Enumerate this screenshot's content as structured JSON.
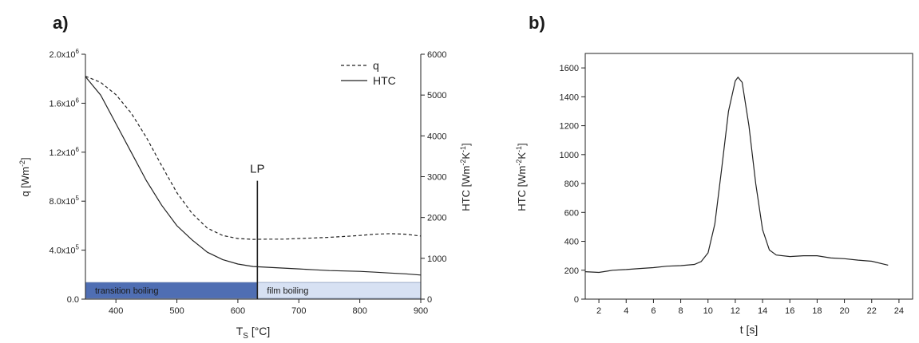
{
  "chart_data": [
    {
      "panel": "a)",
      "type": "line",
      "xlabel": "T",
      "xlabel_sub": "S",
      "xlabel_unit": "[°C]",
      "ylabel_left": "q [Wm",
      "ylabel_left_sup": "-2",
      "ylabel_left_end": "]",
      "ylabel_right": "HTC [Wm",
      "ylabel_right_sup": "-2",
      "ylabel_right_mid": "K",
      "ylabel_right_sup2": "-1",
      "ylabel_right_end": "]",
      "xlim": [
        350,
        900
      ],
      "ylim_left": [
        0,
        2000000
      ],
      "ylim_right": [
        0,
        6000
      ],
      "xticks": [
        "400",
        "500",
        "600",
        "700",
        "800",
        "900"
      ],
      "xtick_values": [
        400,
        500,
        600,
        700,
        800,
        900
      ],
      "yticks_left": [
        {
          "value": 0,
          "mant": "0.0",
          "exp": ""
        },
        {
          "value": 400000,
          "mant": "4.0x10",
          "exp": "5"
        },
        {
          "value": 800000,
          "mant": "8.0x10",
          "exp": "5"
        },
        {
          "value": 1200000,
          "mant": "1.2x10",
          "exp": "6"
        },
        {
          "value": 1600000,
          "mant": "1.6x10",
          "exp": "6"
        },
        {
          "value": 2000000,
          "mant": "2.0x10",
          "exp": "6"
        }
      ],
      "yticks_right": [
        "0",
        "1000",
        "2000",
        "3000",
        "4000",
        "5000",
        "6000"
      ],
      "ytick_right_values": [
        0,
        1000,
        2000,
        3000,
        4000,
        5000,
        6000
      ],
      "legend": {
        "q": "q",
        "htc": "HTC",
        "placement": "top-right"
      },
      "series": [
        {
          "name": "q",
          "axis": "left",
          "style": "dashed",
          "x": [
            350,
            375,
            400,
            425,
            450,
            475,
            500,
            525,
            550,
            575,
            600,
            625,
            650,
            675,
            700,
            725,
            750,
            775,
            800,
            825,
            850,
            875,
            900
          ],
          "y": [
            1820000,
            1770000,
            1670000,
            1520000,
            1320000,
            1090000,
            870000,
            700000,
            580000,
            520000,
            495000,
            488000,
            490000,
            490000,
            495000,
            500000,
            505000,
            512000,
            520000,
            530000,
            535000,
            530000,
            515000
          ]
        },
        {
          "name": "HTC",
          "axis": "right",
          "style": "solid",
          "x": [
            350,
            375,
            400,
            425,
            450,
            475,
            500,
            525,
            550,
            575,
            600,
            625,
            650,
            675,
            700,
            725,
            750,
            775,
            800,
            825,
            850,
            875,
            900
          ],
          "y": [
            5450,
            5000,
            4300,
            3600,
            2900,
            2300,
            1800,
            1450,
            1150,
            970,
            860,
            800,
            780,
            760,
            740,
            720,
            700,
            690,
            680,
            660,
            640,
            620,
            590
          ]
        }
      ],
      "marker": {
        "label": "LP",
        "x": 632,
        "y_top": 2900
      },
      "bands": [
        {
          "label": "transition boiling",
          "x0": 350,
          "x1": 632,
          "color": "#4f6eb3"
        },
        {
          "label": "film boiling",
          "x0": 632,
          "x1": 900,
          "color": "#d7e1f3"
        }
      ],
      "band_range_right_axis": [
        0,
        410
      ]
    },
    {
      "panel": "b)",
      "type": "line",
      "xlabel": "t [s]",
      "ylabel": "HTC [Wm",
      "ylabel_sup": "-2",
      "ylabel_mid": "K",
      "ylabel_sup2": "-1",
      "ylabel_end": "]",
      "xlim": [
        1,
        25
      ],
      "ylim": [
        0,
        1700
      ],
      "xticks": [
        "2",
        "4",
        "6",
        "8",
        "10",
        "12",
        "14",
        "16",
        "18",
        "20",
        "22",
        "24"
      ],
      "xtick_values": [
        2,
        4,
        6,
        8,
        10,
        12,
        14,
        16,
        18,
        20,
        22,
        24
      ],
      "yticks": [
        "0",
        "200",
        "400",
        "600",
        "800",
        "1000",
        "1200",
        "1400",
        "1600"
      ],
      "ytick_values": [
        0,
        200,
        400,
        600,
        800,
        1000,
        1200,
        1400,
        1600
      ],
      "series": [
        {
          "style": "solid",
          "x": [
            1,
            2,
            3,
            4,
            5,
            6,
            7,
            8,
            9,
            9.5,
            10,
            10.5,
            11,
            11.5,
            12,
            12.2,
            12.5,
            13,
            13.5,
            14,
            14.5,
            15,
            16,
            17,
            18,
            19,
            20,
            21,
            22,
            23.2
          ],
          "y": [
            190,
            185,
            200,
            205,
            212,
            218,
            228,
            232,
            240,
            260,
            320,
            520,
            900,
            1300,
            1510,
            1535,
            1500,
            1200,
            800,
            480,
            340,
            305,
            295,
            300,
            300,
            285,
            280,
            270,
            262,
            235
          ]
        }
      ]
    }
  ]
}
